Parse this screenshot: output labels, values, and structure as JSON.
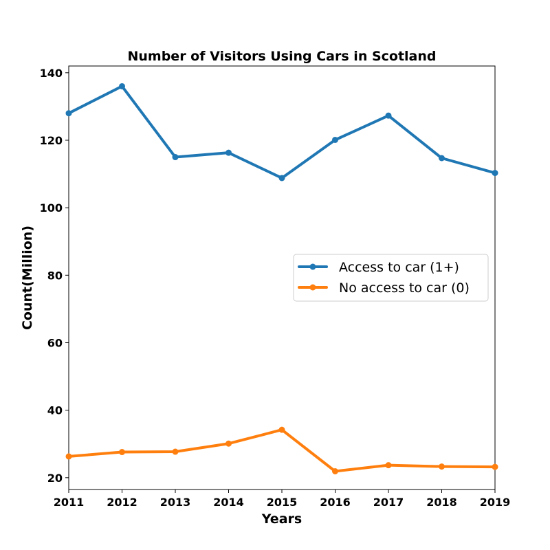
{
  "chart_data": {
    "type": "line",
    "title": "Number of Visitors Using Cars in Scotland",
    "xlabel": "Years",
    "ylabel": "Count(Million)",
    "x": [
      2011,
      2012,
      2013,
      2014,
      2015,
      2016,
      2017,
      2018,
      2019
    ],
    "xlim": [
      2011,
      2019
    ],
    "ylim": [
      16.5,
      142
    ],
    "yticks": [
      20,
      40,
      60,
      80,
      100,
      120,
      140
    ],
    "grid": false,
    "legend_position": "center-right",
    "series": [
      {
        "name": "Access to car (1+)",
        "color": "#1f77b4",
        "values": [
          128.0,
          136.0,
          115.0,
          116.3,
          108.8,
          120.1,
          127.3,
          114.7,
          110.3
        ]
      },
      {
        "name": "No access to car (0)",
        "color": "#ff7f0e",
        "values": [
          26.3,
          27.6,
          27.7,
          30.1,
          34.2,
          21.9,
          23.7,
          23.3,
          23.2
        ]
      }
    ]
  }
}
